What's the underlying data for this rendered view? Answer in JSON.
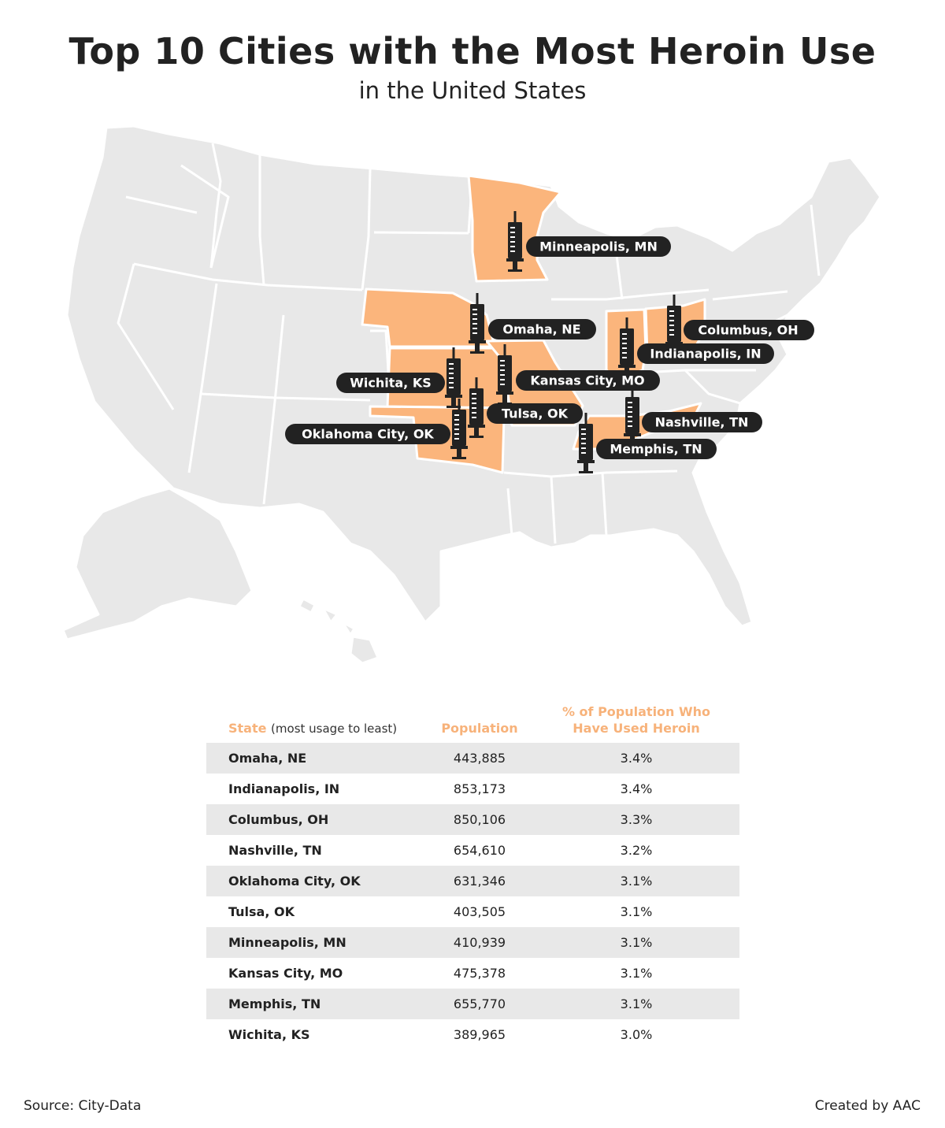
{
  "title": "Top 10 Cities with the Most Heroin Use",
  "subtitle": "in the United States",
  "colors": {
    "highlight": "#fbb57c",
    "land": "#e8e8e8",
    "marker": "#222222",
    "header": "#f7b27a"
  },
  "map": {
    "highlighted_states": [
      "MN",
      "NE",
      "KS",
      "OK",
      "MO",
      "IN",
      "OH",
      "TN"
    ],
    "markers": [
      {
        "id": "minneapolis",
        "label": "Minneapolis, MN",
        "icon": "syringe-icon"
      },
      {
        "id": "omaha",
        "label": "Omaha, NE",
        "icon": "syringe-icon"
      },
      {
        "id": "columbus",
        "label": "Columbus, OH",
        "icon": "syringe-icon"
      },
      {
        "id": "indianapolis",
        "label": "Indianapolis, IN",
        "icon": "syringe-icon"
      },
      {
        "id": "wichita",
        "label": "Wichita, KS",
        "icon": "syringe-icon"
      },
      {
        "id": "kansas-city",
        "label": "Kansas City, MO",
        "icon": "syringe-icon"
      },
      {
        "id": "tulsa",
        "label": "Tulsa, OK",
        "icon": "syringe-icon"
      },
      {
        "id": "nashville",
        "label": "Nashville, TN",
        "icon": "syringe-icon"
      },
      {
        "id": "oklahoma-city",
        "label": "Oklahoma City, OK",
        "icon": "syringe-icon"
      },
      {
        "id": "memphis",
        "label": "Memphis, TN",
        "icon": "syringe-icon"
      }
    ]
  },
  "table": {
    "headers": {
      "state": "State",
      "state_note": "(most usage to least)",
      "population": "Population",
      "pct_line1": "% of Population Who",
      "pct_line2": "Have Used Heroin"
    },
    "rows": [
      {
        "city": "Omaha, NE",
        "population": "443,885",
        "pct": "3.4%"
      },
      {
        "city": "Indianapolis, IN",
        "population": "853,173",
        "pct": "3.4%"
      },
      {
        "city": "Columbus, OH",
        "population": "850,106",
        "pct": "3.3%"
      },
      {
        "city": "Nashville, TN",
        "population": "654,610",
        "pct": "3.2%"
      },
      {
        "city": "Oklahoma City, OK",
        "population": "631,346",
        "pct": "3.1%"
      },
      {
        "city": "Tulsa, OK",
        "population": "403,505",
        "pct": "3.1%"
      },
      {
        "city": "Minneapolis, MN",
        "population": "410,939",
        "pct": "3.1%"
      },
      {
        "city": "Kansas City, MO",
        "population": "475,378",
        "pct": "3.1%"
      },
      {
        "city": "Memphis, TN",
        "population": "655,770",
        "pct": "3.1%"
      },
      {
        "city": "Wichita, KS",
        "population": "389,965",
        "pct": "3.0%"
      }
    ]
  },
  "footer": {
    "source": "Source: City-Data",
    "credit": "Created by AAC"
  }
}
